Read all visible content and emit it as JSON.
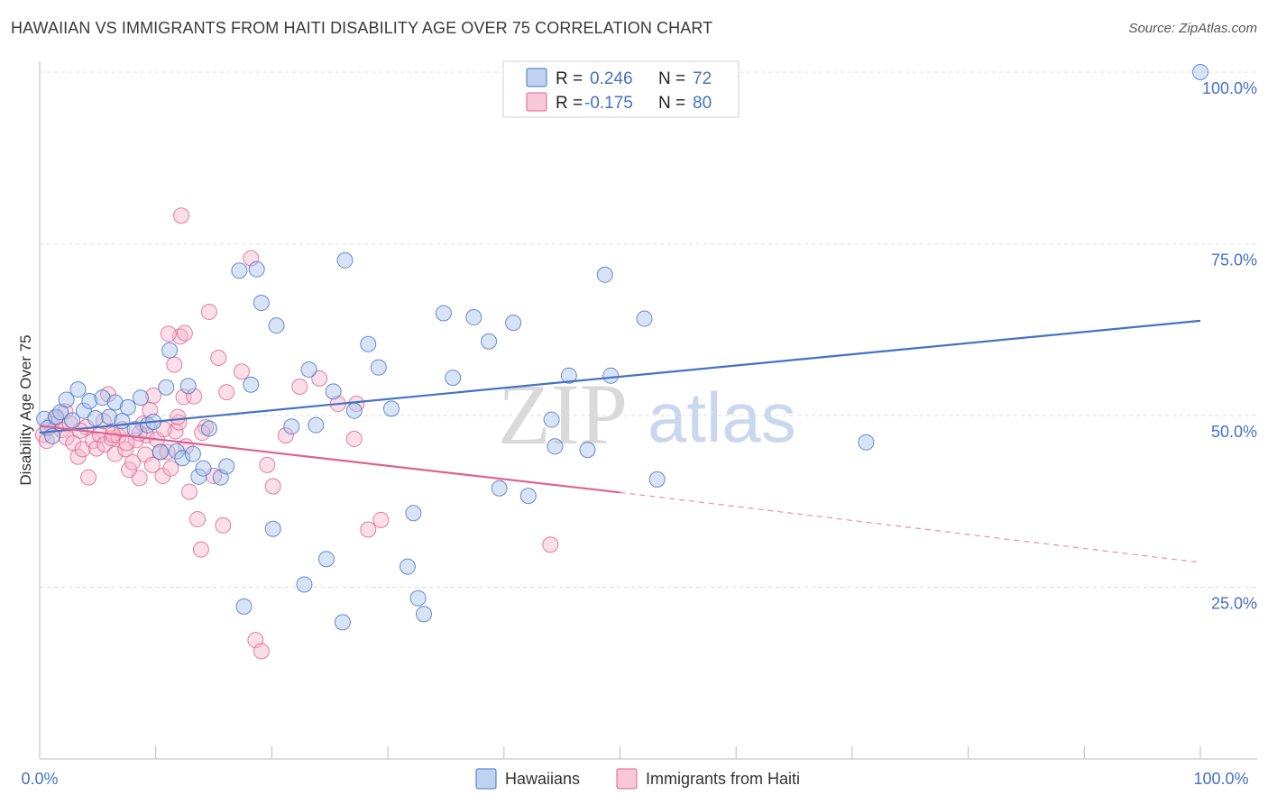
{
  "header": {
    "title": "HAWAIIAN VS IMMIGRANTS FROM HAITI DISABILITY AGE OVER 75 CORRELATION CHART",
    "source": "Source: ZipAtlas.com"
  },
  "watermark": {
    "zip": "ZIP",
    "atlas": "atlas"
  },
  "colors": {
    "hawaiians": "#4472c4",
    "hawaiians_fill": "#a9c4ec",
    "haiti": "#e0608f",
    "haiti_fill": "#f4b6cb",
    "grid": "#dddddd",
    "axis_label": "#4472c4"
  },
  "legend": {
    "rows": [
      {
        "r_label": "R = ",
        "r_value": "0.246",
        "n_label": "N = ",
        "n_value": "72"
      },
      {
        "r_label": "R = ",
        "r_value": "-0.175",
        "n_label": "N = ",
        "n_value": "80"
      }
    ]
  },
  "bottom_legend": {
    "items": [
      "Hawaiians",
      "Immigrants from Haiti"
    ]
  },
  "chart_data": {
    "type": "scatter",
    "title": "HAWAIIAN VS IMMIGRANTS FROM HAITI DISABILITY AGE OVER 75 CORRELATION CHART",
    "xlabel": "",
    "ylabel": "Disability Age Over 75",
    "xlim": [
      0,
      100
    ],
    "ylim": [
      0,
      100
    ],
    "x_tick_labels": [
      "0.0%",
      "100.0%"
    ],
    "y_tick_labels": [
      "25.0%",
      "50.0%",
      "75.0%",
      "100.0%"
    ],
    "y_ticks": [
      25,
      50,
      75,
      100
    ],
    "grid": true,
    "legend_position": "top-center",
    "series": [
      {
        "name": "Hawaiians",
        "R": 0.246,
        "N": 72,
        "trend": {
          "x": [
            0,
            100
          ],
          "y": [
            47.5,
            63.8
          ]
        },
        "points": [
          [
            0.4,
            49.5
          ],
          [
            0.7,
            48.2
          ],
          [
            1.1,
            47.0
          ],
          [
            1.4,
            49.8
          ],
          [
            1.8,
            50.5
          ],
          [
            2.3,
            52.3
          ],
          [
            2.8,
            49.3
          ],
          [
            3.3,
            53.8
          ],
          [
            3.8,
            50.7
          ],
          [
            4.3,
            52.1
          ],
          [
            4.8,
            49.6
          ],
          [
            5.4,
            52.6
          ],
          [
            6.0,
            49.8
          ],
          [
            6.5,
            51.9
          ],
          [
            7.1,
            49.2
          ],
          [
            7.6,
            51.2
          ],
          [
            8.2,
            48.0
          ],
          [
            8.7,
            52.6
          ],
          [
            9.3,
            48.6
          ],
          [
            9.8,
            49.1
          ],
          [
            10.4,
            44.7
          ],
          [
            10.9,
            54.1
          ],
          [
            11.2,
            59.5
          ],
          [
            11.8,
            44.8
          ],
          [
            12.3,
            43.8
          ],
          [
            12.8,
            54.3
          ],
          [
            13.2,
            44.4
          ],
          [
            13.7,
            41.1
          ],
          [
            14.1,
            42.3
          ],
          [
            14.6,
            48.1
          ],
          [
            15.6,
            41.0
          ],
          [
            16.1,
            42.6
          ],
          [
            17.2,
            71.1
          ],
          [
            17.6,
            22.2
          ],
          [
            18.2,
            54.5
          ],
          [
            18.7,
            71.3
          ],
          [
            19.1,
            66.4
          ],
          [
            20.1,
            33.5
          ],
          [
            20.4,
            63.1
          ],
          [
            21.7,
            48.4
          ],
          [
            22.8,
            25.4
          ],
          [
            23.2,
            56.7
          ],
          [
            23.8,
            48.6
          ],
          [
            24.7,
            29.1
          ],
          [
            25.3,
            53.5
          ],
          [
            26.1,
            19.9
          ],
          [
            26.3,
            72.6
          ],
          [
            27.1,
            50.7
          ],
          [
            28.3,
            60.4
          ],
          [
            29.2,
            57.0
          ],
          [
            30.3,
            51.0
          ],
          [
            31.7,
            28.0
          ],
          [
            32.2,
            35.8
          ],
          [
            32.6,
            23.4
          ],
          [
            33.1,
            21.1
          ],
          [
            34.8,
            64.9
          ],
          [
            35.6,
            55.5
          ],
          [
            37.4,
            64.3
          ],
          [
            38.7,
            60.8
          ],
          [
            39.6,
            39.4
          ],
          [
            40.8,
            63.5
          ],
          [
            42.1,
            38.3
          ],
          [
            44.1,
            49.4
          ],
          [
            44.4,
            45.5
          ],
          [
            45.6,
            55.8
          ],
          [
            47.2,
            45.0
          ],
          [
            48.7,
            70.5
          ],
          [
            49.2,
            55.8
          ],
          [
            52.1,
            64.1
          ],
          [
            53.2,
            40.7
          ],
          [
            71.2,
            46.1
          ],
          [
            100.0,
            100.0
          ]
        ]
      },
      {
        "name": "Immigrants from Haiti",
        "R": -0.175,
        "N": 80,
        "trend": {
          "x": [
            0,
            50
          ],
          "y": [
            48.5,
            38.8
          ]
        },
        "trend_dashed": {
          "x": [
            50,
            100
          ],
          "y": [
            38.8,
            28.6
          ]
        },
        "points": [
          [
            0.3,
            47.2
          ],
          [
            0.6,
            46.3
          ],
          [
            1.0,
            48.7
          ],
          [
            1.4,
            49.6
          ],
          [
            1.9,
            47.9
          ],
          [
            2.3,
            46.8
          ],
          [
            2.6,
            48.9
          ],
          [
            2.9,
            46.0
          ],
          [
            3.3,
            44.0
          ],
          [
            3.7,
            45.1
          ],
          [
            4.0,
            48.3
          ],
          [
            4.2,
            41.0
          ],
          [
            4.6,
            46.3
          ],
          [
            4.9,
            45.2
          ],
          [
            5.2,
            47.2
          ],
          [
            5.6,
            45.8
          ],
          [
            5.9,
            53.1
          ],
          [
            6.2,
            46.7
          ],
          [
            6.5,
            44.4
          ],
          [
            6.8,
            47.0
          ],
          [
            7.1,
            48.0
          ],
          [
            7.4,
            45.1
          ],
          [
            7.7,
            42.1
          ],
          [
            8.0,
            43.2
          ],
          [
            8.3,
            46.4
          ],
          [
            8.6,
            40.9
          ],
          [
            8.9,
            48.8
          ],
          [
            9.2,
            47.1
          ],
          [
            9.5,
            50.8
          ],
          [
            9.8,
            52.9
          ],
          [
            10.1,
            46.5
          ],
          [
            10.4,
            44.7
          ],
          [
            10.6,
            41.2
          ],
          [
            11.0,
            44.7
          ],
          [
            11.3,
            42.3
          ],
          [
            11.7,
            47.7
          ],
          [
            12.0,
            49.0
          ],
          [
            12.4,
            52.7
          ],
          [
            12.6,
            45.5
          ],
          [
            12.9,
            38.9
          ],
          [
            13.3,
            52.8
          ],
          [
            13.6,
            34.9
          ],
          [
            13.9,
            30.5
          ],
          [
            14.3,
            48.3
          ],
          [
            14.6,
            65.1
          ],
          [
            15.0,
            41.2
          ],
          [
            15.4,
            58.4
          ],
          [
            15.8,
            34.0
          ],
          [
            16.1,
            53.4
          ],
          [
            17.4,
            56.4
          ],
          [
            18.2,
            72.9
          ],
          [
            18.6,
            17.3
          ],
          [
            19.1,
            15.7
          ],
          [
            19.6,
            42.8
          ],
          [
            20.1,
            39.7
          ],
          [
            21.2,
            47.1
          ],
          [
            22.4,
            54.2
          ],
          [
            24.1,
            55.4
          ],
          [
            25.7,
            51.7
          ],
          [
            27.1,
            46.6
          ],
          [
            27.3,
            51.7
          ],
          [
            28.3,
            33.4
          ],
          [
            29.4,
            34.8
          ],
          [
            11.6,
            57.4
          ],
          [
            12.1,
            61.5
          ],
          [
            12.5,
            62.0
          ],
          [
            11.1,
            61.9
          ],
          [
            12.2,
            79.1
          ],
          [
            11.9,
            49.8
          ],
          [
            10.7,
            48.0
          ],
          [
            9.1,
            44.3
          ],
          [
            6.3,
            47.2
          ],
          [
            3.5,
            47.8
          ],
          [
            7.5,
            46.0
          ],
          [
            8.6,
            47.4
          ],
          [
            9.7,
            42.8
          ],
          [
            44.0,
            31.2
          ],
          [
            14.0,
            47.5
          ],
          [
            5.5,
            49.2
          ],
          [
            2.2,
            50.6
          ]
        ]
      }
    ]
  }
}
